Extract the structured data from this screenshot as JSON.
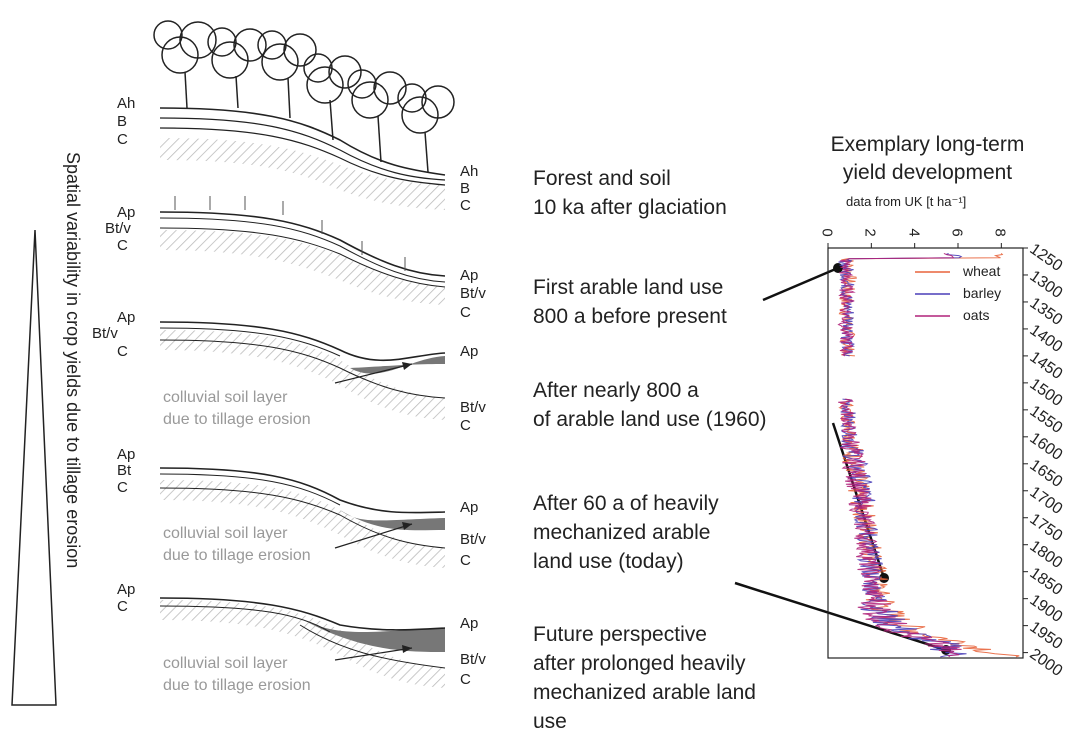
{
  "left_axis_label": "Spatial variability in crop yields due to tillage erosion",
  "stages": [
    {
      "title_line1": "Forest and soil",
      "title_line2": "10 ka after glaciation",
      "left": [
        "Ah",
        "B",
        "C"
      ],
      "right": [
        "Ah",
        "B",
        "C"
      ]
    },
    {
      "title_line1": "First arable land use",
      "title_line2": "800 a before present",
      "left": [
        "Ap",
        "Bt/v",
        "C"
      ],
      "right": [
        "Ap",
        "Bt/v",
        "C"
      ]
    },
    {
      "title_line1": "After nearly 800 a",
      "title_line2": "of arable land use (1960)",
      "left": [
        "Ap",
        "Bt/v",
        "C"
      ],
      "right": [
        "Ap",
        "Bt/v",
        "C"
      ],
      "colluvial1": "colluvial soil layer",
      "colluvial2": "due to tillage erosion"
    },
    {
      "title_line1": "After 60 a of heavily",
      "title_line2": "mechanized arable",
      "title_line3": "land use (today)",
      "left": [
        "Ap",
        "Bt",
        "C"
      ],
      "right": [
        "Ap",
        "Bt/v",
        "C"
      ],
      "colluvial1": "colluvial soil layer",
      "colluvial2": "due to tillage erosion"
    },
    {
      "title_line1": "Future perspective",
      "title_line2": "after prolonged heavily",
      "title_line3": "mechanized arable land",
      "title_line4": "use",
      "left": [
        "Ap",
        "C"
      ],
      "right": [
        "Ap",
        "Bt/v",
        "C"
      ],
      "colluvial1": "colluvial soil layer",
      "colluvial2": "due to tillage erosion"
    }
  ],
  "chart_title1": "Exemplary long-term",
  "chart_title2": "yield development",
  "chart_subtitle": "data from UK [t ha⁻¹]",
  "chart_data": {
    "type": "line",
    "xaxis_label": "data from UK [t ha⁻¹]",
    "x_ticks": [
      "0",
      "2",
      "4",
      "6",
      "8"
    ],
    "y_ticks": [
      "1250",
      "1300",
      "1350",
      "1400",
      "1450",
      "1500",
      "1550",
      "1600",
      "1650",
      "1700",
      "1750",
      "1800",
      "1850",
      "1900",
      "1950",
      "2000"
    ],
    "xlim": [
      0,
      9
    ],
    "ylim": [
      1250,
      2010
    ],
    "series": [
      {
        "name": "wheat",
        "color": "#e8643c",
        "points": [
          [
            1270,
            0.9
          ],
          [
            1300,
            1.0
          ],
          [
            1350,
            0.8
          ],
          [
            1400,
            0.9
          ],
          [
            1450,
            0.9
          ],
          [
            1530,
            0.8
          ],
          [
            1600,
            1.1
          ],
          [
            1650,
            1.2
          ],
          [
            1700,
            1.4
          ],
          [
            1750,
            1.7
          ],
          [
            1800,
            2.0
          ],
          [
            1850,
            2.2
          ],
          [
            1880,
            2.3
          ],
          [
            1900,
            2.4
          ],
          [
            1930,
            2.8
          ],
          [
            1950,
            3.5
          ],
          [
            1965,
            4.4
          ],
          [
            1975,
            5.5
          ],
          [
            1985,
            6.5
          ],
          [
            1995,
            7.4
          ],
          [
            2005,
            8.0
          ]
        ]
      },
      {
        "name": "barley",
        "color": "#4a3fb8",
        "points": [
          [
            1270,
            0.8
          ],
          [
            1300,
            0.9
          ],
          [
            1350,
            0.9
          ],
          [
            1400,
            1.0
          ],
          [
            1450,
            0.8
          ],
          [
            1530,
            0.9
          ],
          [
            1600,
            1.0
          ],
          [
            1650,
            1.3
          ],
          [
            1700,
            1.6
          ],
          [
            1750,
            1.7
          ],
          [
            1800,
            1.9
          ],
          [
            1850,
            2.0
          ],
          [
            1880,
            2.1
          ],
          [
            1900,
            2.2
          ],
          [
            1930,
            2.5
          ],
          [
            1950,
            3.0
          ],
          [
            1965,
            3.9
          ],
          [
            1975,
            4.5
          ],
          [
            1985,
            5.3
          ],
          [
            1995,
            5.6
          ],
          [
            2005,
            5.8
          ]
        ]
      },
      {
        "name": "oats",
        "color": "#b0227a",
        "points": [
          [
            1270,
            0.8
          ],
          [
            1300,
            0.8
          ],
          [
            1350,
            0.9
          ],
          [
            1400,
            0.8
          ],
          [
            1450,
            0.9
          ],
          [
            1530,
            0.8
          ],
          [
            1600,
            1.0
          ],
          [
            1650,
            1.2
          ],
          [
            1700,
            1.4
          ],
          [
            1750,
            1.6
          ],
          [
            1800,
            1.8
          ],
          [
            1850,
            1.9
          ],
          [
            1880,
            2.0
          ],
          [
            1900,
            2.1
          ],
          [
            1930,
            2.4
          ],
          [
            1950,
            2.9
          ],
          [
            1965,
            3.6
          ],
          [
            1975,
            4.2
          ],
          [
            1985,
            5.0
          ],
          [
            1995,
            5.4
          ],
          [
            2005,
            5.6
          ]
        ]
      }
    ],
    "gap": [
      1450,
      1530
    ],
    "legend_position": "top-right"
  }
}
